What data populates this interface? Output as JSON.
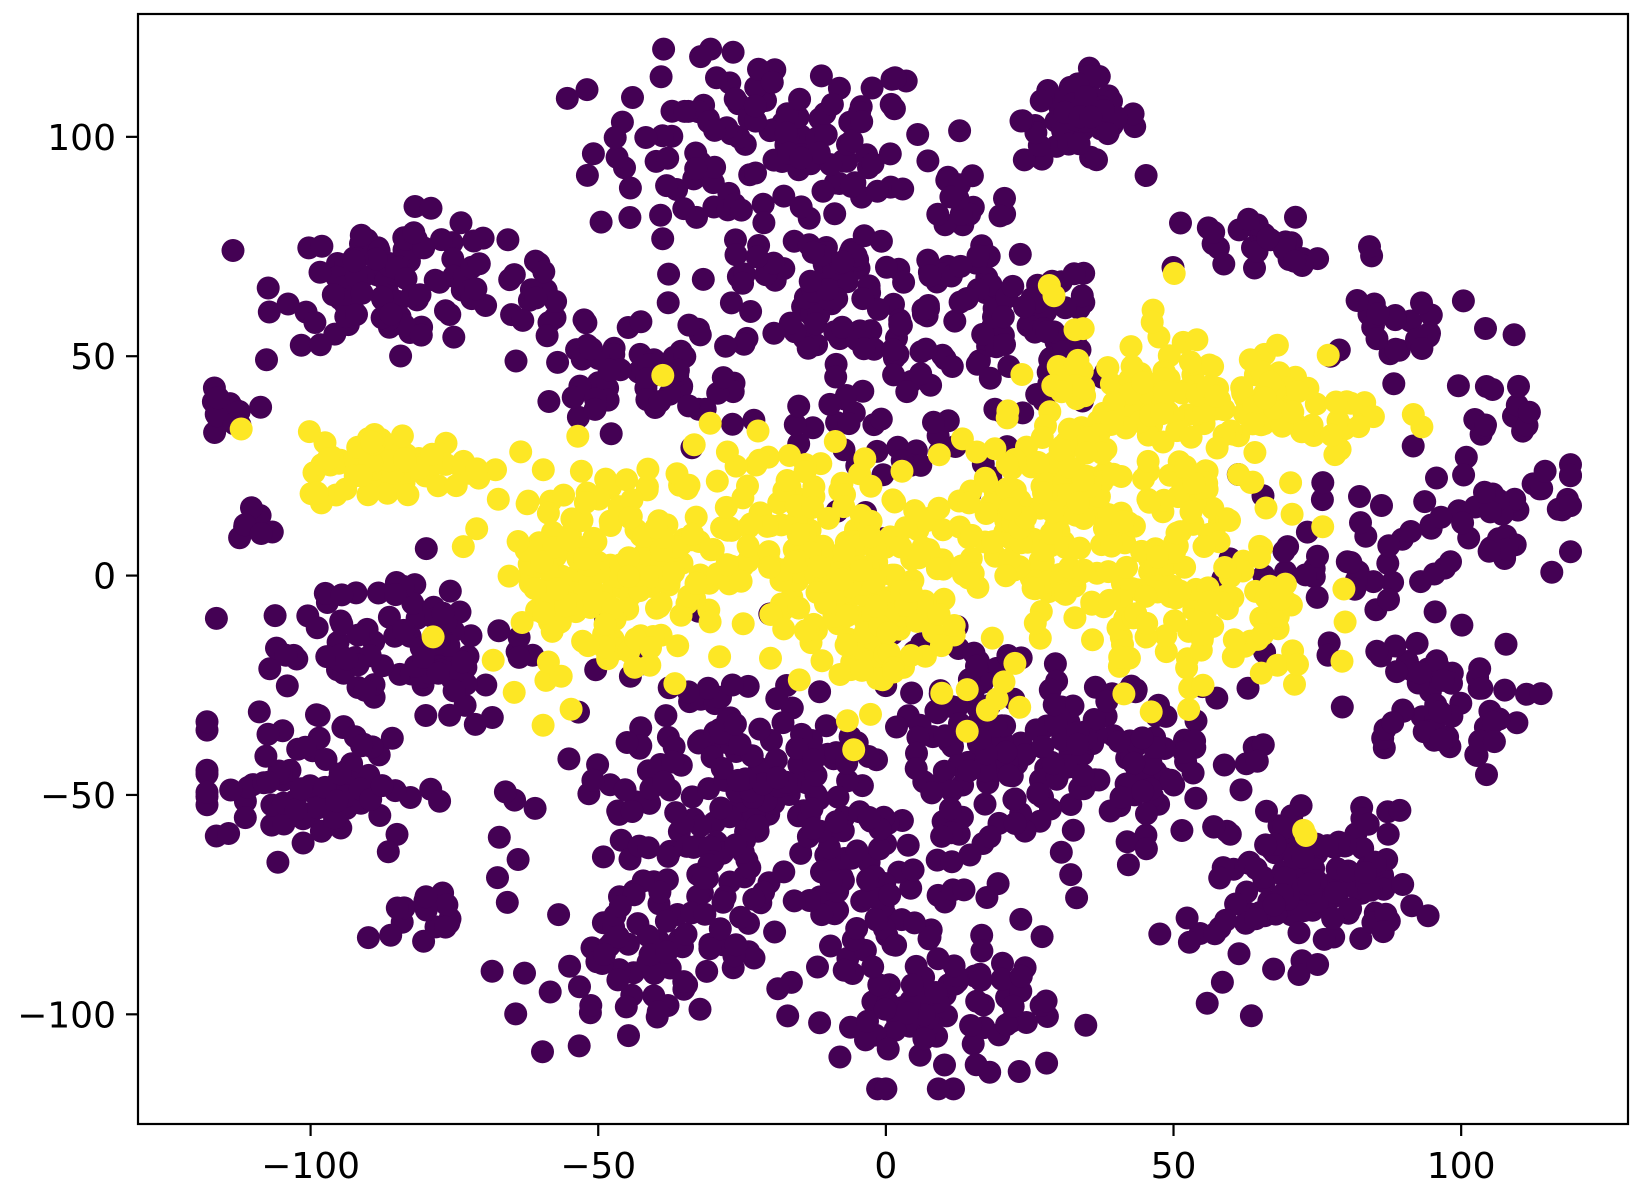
{
  "chart_data": {
    "type": "scatter",
    "title": "",
    "xlabel": "",
    "ylabel": "",
    "xlim": [
      -130,
      129
    ],
    "ylim": [
      -125,
      128
    ],
    "xticks": [
      -100,
      -50,
      0,
      50,
      100
    ],
    "yticks": [
      -100,
      -50,
      0,
      50,
      100
    ],
    "xtick_labels": [
      "−100",
      "−50",
      "0",
      "50",
      "100"
    ],
    "ytick_labels": [
      "−100",
      "−50",
      "0",
      "50",
      "100"
    ],
    "grid": false,
    "legend": "none",
    "series": [
      {
        "color": "#440154",
        "clusters": [
          {
            "center": [
              -21,
              97
            ],
            "spread": [
              15,
              11
            ],
            "count": 130
          },
          {
            "center": [
              -10,
              65
            ],
            "spread": [
              16,
              10
            ],
            "count": 100
          },
          {
            "center": [
              5,
              40
            ],
            "spread": [
              14,
              12
            ],
            "count": 70
          },
          {
            "center": [
              34,
              104
            ],
            "spread": [
              5,
              5
            ],
            "count": 60
          },
          {
            "center": [
              15,
              85
            ],
            "spread": [
              5,
              5
            ],
            "count": 15
          },
          {
            "center": [
              20,
              58
            ],
            "spread": [
              9,
              7
            ],
            "count": 45
          },
          {
            "center": [
              -85,
              67
            ],
            "spread": [
              10,
              7
            ],
            "count": 100
          },
          {
            "center": [
              -62,
              65
            ],
            "spread": [
              4,
              4
            ],
            "count": 15
          },
          {
            "center": [
              -115,
              36
            ],
            "spread": [
              2,
              3
            ],
            "count": 15
          },
          {
            "center": [
              -110,
              12
            ],
            "spread": [
              2,
              2
            ],
            "count": 8
          },
          {
            "center": [
              -52,
              48
            ],
            "spread": [
              7,
              7
            ],
            "count": 25
          },
          {
            "center": [
              -38,
              40
            ],
            "spread": [
              6,
              6
            ],
            "count": 25
          },
          {
            "center": [
              67,
              75
            ],
            "spread": [
              10,
              5
            ],
            "count": 30
          },
          {
            "center": [
              90,
              58
            ],
            "spread": [
              9,
              5
            ],
            "count": 25
          },
          {
            "center": [
              105,
              15
            ],
            "spread": [
              10,
              10
            ],
            "count": 50
          },
          {
            "center": [
              110,
              40
            ],
            "spread": [
              4,
              3
            ],
            "count": 10
          },
          {
            "center": [
              95,
              -30
            ],
            "spread": [
              8,
              8
            ],
            "count": 50
          },
          {
            "center": [
              78,
              0
            ],
            "spread": [
              10,
              12
            ],
            "count": 40
          },
          {
            "center": [
              76,
              -70
            ],
            "spread": [
              8,
              8
            ],
            "count": 110
          },
          {
            "center": [
              60,
              -82
            ],
            "spread": [
              7,
              7
            ],
            "count": 20
          },
          {
            "center": [
              40,
              -42
            ],
            "spread": [
              15,
              10
            ],
            "count": 120
          },
          {
            "center": [
              20,
              -42
            ],
            "spread": [
              8,
              8
            ],
            "count": 60
          },
          {
            "center": [
              10,
              -100
            ],
            "spread": [
              9,
              8
            ],
            "count": 80
          },
          {
            "center": [
              0,
              -75
            ],
            "spread": [
              10,
              10
            ],
            "count": 60
          },
          {
            "center": [
              -25,
              -50
            ],
            "spread": [
              16,
              16
            ],
            "count": 220
          },
          {
            "center": [
              -45,
              -90
            ],
            "spread": [
              10,
              10
            ],
            "count": 70
          },
          {
            "center": [
              -100,
              -48
            ],
            "spread": [
              10,
              8
            ],
            "count": 80
          },
          {
            "center": [
              -80,
              -78
            ],
            "spread": [
              3,
              3
            ],
            "count": 15
          },
          {
            "center": [
              -85,
              -15
            ],
            "spread": [
              12,
              10
            ],
            "count": 90
          },
          {
            "center": [
              15,
              -20
            ],
            "spread": [
              5,
              5
            ],
            "count": 12
          },
          {
            "center": [
              33,
              50
            ],
            "spread": [
              4,
              4
            ],
            "count": 10
          }
        ]
      },
      {
        "color": "#fde725",
        "clusters": [
          {
            "center": [
              -85,
              25
            ],
            "spread": [
              8,
              4
            ],
            "count": 80
          },
          {
            "center": [
              -48,
              2
            ],
            "spread": [
              11,
              12
            ],
            "count": 180
          },
          {
            "center": [
              -15,
              10
            ],
            "spread": [
              12,
              10
            ],
            "count": 120
          },
          {
            "center": [
              -4,
              -10
            ],
            "spread": [
              8,
              10
            ],
            "count": 100
          },
          {
            "center": [
              20,
              10
            ],
            "spread": [
              10,
              10
            ],
            "count": 80
          },
          {
            "center": [
              45,
              45
            ],
            "spread": [
              8,
              10
            ],
            "count": 70
          },
          {
            "center": [
              45,
              15
            ],
            "spread": [
              12,
              15
            ],
            "count": 160
          },
          {
            "center": [
              55,
              -10
            ],
            "spread": [
              10,
              8
            ],
            "count": 60
          },
          {
            "center": [
              70,
              38
            ],
            "spread": [
              9,
              7
            ],
            "count": 60
          },
          {
            "center": [
              30,
              25
            ],
            "spread": [
              6,
              6
            ],
            "count": 30
          },
          {
            "center": [
              18,
              -30
            ],
            "spread": [
              3,
              3
            ],
            "count": 5
          },
          {
            "center": [
              72,
              -60
            ],
            "spread": [
              1,
              1
            ],
            "count": 2
          }
        ]
      }
    ]
  }
}
